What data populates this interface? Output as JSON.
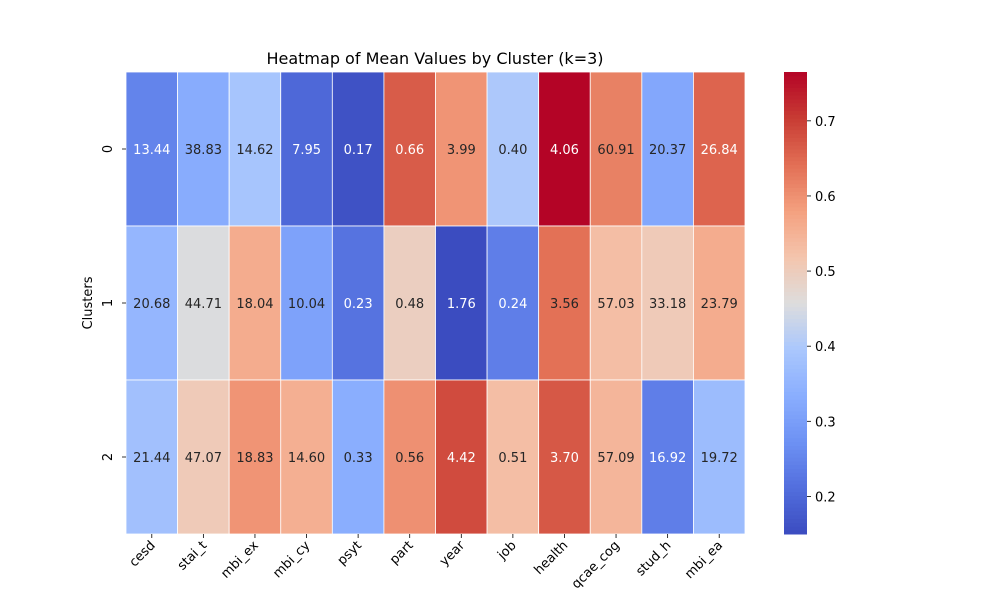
{
  "chart_data": {
    "type": "heatmap",
    "title": "Heatmap of Mean Values by Cluster (k=3)",
    "xlabel": "",
    "ylabel": "Clusters",
    "columns": [
      "cesd",
      "stai_t",
      "mbi_ex",
      "mbi_cy",
      "psyt",
      "part",
      "year",
      "job",
      "health",
      "qcae_cog",
      "stud_h",
      "mbi_ea"
    ],
    "rows": [
      "0",
      "1",
      "2"
    ],
    "values": [
      [
        13.44,
        38.83,
        14.62,
        7.95,
        0.17,
        0.66,
        3.99,
        0.4,
        4.06,
        60.91,
        20.37,
        26.84
      ],
      [
        20.68,
        44.71,
        18.04,
        10.04,
        0.23,
        0.48,
        1.76,
        0.24,
        3.56,
        57.03,
        33.18,
        23.79
      ],
      [
        21.44,
        47.07,
        18.83,
        14.6,
        0.33,
        0.56,
        4.42,
        0.51,
        3.7,
        57.09,
        16.92,
        19.72
      ]
    ],
    "color_values": [
      [
        0.25,
        0.33,
        0.39,
        0.2,
        0.16,
        0.665,
        0.595,
        0.4,
        0.765,
        0.62,
        0.32,
        0.655
      ],
      [
        0.355,
        0.455,
        0.56,
        0.31,
        0.22,
        0.495,
        0.15,
        0.24,
        0.64,
        0.53,
        0.505,
        0.56
      ],
      [
        0.38,
        0.505,
        0.595,
        0.555,
        0.335,
        0.6,
        0.685,
        0.53,
        0.67,
        0.545,
        0.24,
        0.37
      ]
    ],
    "colorbar": {
      "colormap": "coolwarm",
      "range": [
        0.15,
        0.765
      ],
      "ticks": [
        "0.2",
        "0.3",
        "0.4",
        "0.5",
        "0.6",
        "0.7"
      ]
    },
    "cell_labels": true,
    "grid": false,
    "legend": "colorbar-right"
  }
}
